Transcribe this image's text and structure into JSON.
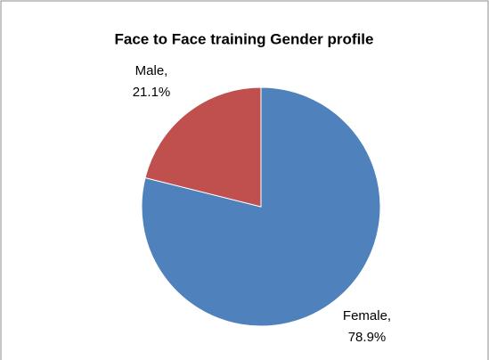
{
  "chart_data": {
    "type": "pie",
    "title": "Face to Face training Gender profile",
    "categories": [
      "Female,",
      "Male,"
    ],
    "values": [
      78.9,
      21.1
    ],
    "value_labels": [
      "78.9%",
      "21.1%"
    ],
    "colors": [
      "#4f81bd",
      "#c0504d"
    ]
  }
}
